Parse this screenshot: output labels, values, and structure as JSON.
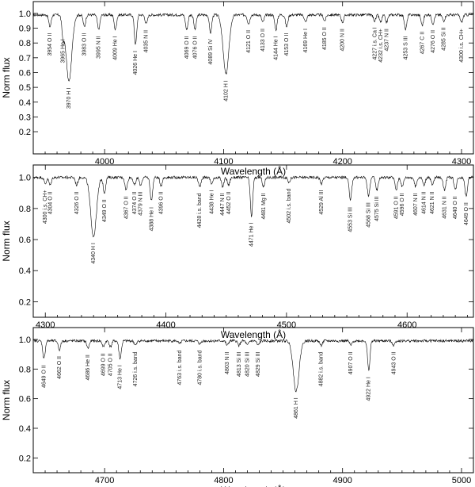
{
  "chart_data": [
    {
      "type": "line",
      "xlabel": "Wavelength (Å)",
      "ylabel": "Norm flux",
      "xlim": [
        3940,
        4310
      ],
      "ylim": [
        0.05,
        1.08
      ],
      "xticks": [
        4000,
        4100,
        4200,
        4300
      ],
      "yticks": [
        0.2,
        0.3,
        0.4,
        0.5,
        0.6,
        0.7,
        0.8,
        0.9,
        1.0
      ],
      "continuum": 0.99,
      "absorption_lines": [
        {
          "wl": 3954,
          "label": "3954 O II",
          "depth": 0.08
        },
        {
          "wl": 3965,
          "label": "3965 He I",
          "depth": 0.12
        },
        {
          "wl": 3970,
          "label": "3970 H I",
          "depth": 0.45
        },
        {
          "wl": 3983,
          "label": "3983 O II",
          "depth": 0.08
        },
        {
          "wl": 3995,
          "label": "3995 N II",
          "depth": 0.1
        },
        {
          "wl": 4009,
          "label": "4009 He I",
          "depth": 0.1
        },
        {
          "wl": 4026,
          "label": "4026 He I",
          "depth": 0.2
        },
        {
          "wl": 4035,
          "label": "4035 N II",
          "depth": 0.06
        },
        {
          "wl": 4069,
          "label": "4069 O II",
          "depth": 0.1
        },
        {
          "wl": 4076,
          "label": "4076 O II",
          "depth": 0.1
        },
        {
          "wl": 4089,
          "label": "4089 Si IV",
          "depth": 0.12
        },
        {
          "wl": 4102,
          "label": "4102 H I",
          "depth": 0.4
        },
        {
          "wl": 4121,
          "label": "4121 O II",
          "depth": 0.06
        },
        {
          "wl": 4133,
          "label": "4133 O II",
          "depth": 0.05
        },
        {
          "wl": 4144,
          "label": "4144 He I",
          "depth": 0.1
        },
        {
          "wl": 4153,
          "label": "4153 O II",
          "depth": 0.08
        },
        {
          "wl": 4169,
          "label": "4169 He I",
          "depth": 0.05
        },
        {
          "wl": 4185,
          "label": "4185 O II",
          "depth": 0.04
        },
        {
          "wl": 4200,
          "label": "4200 N II",
          "depth": 0.05
        },
        {
          "wl": 4227,
          "label": "4227 i.s. Ca I",
          "depth": 0.04
        },
        {
          "wl": 4232,
          "label": "4232 i.s. CH+",
          "depth": 0.05
        },
        {
          "wl": 4237,
          "label": "4237 N II",
          "depth": 0.05
        },
        {
          "wl": 4253,
          "label": "4253 S III",
          "depth": 0.1
        },
        {
          "wl": 4267,
          "label": "4267 C II",
          "depth": 0.07
        },
        {
          "wl": 4276,
          "label": "4276 O II",
          "depth": 0.06
        },
        {
          "wl": 4285,
          "label": "4285 Si II",
          "depth": 0.04
        },
        {
          "wl": 4300,
          "label": "4300 i.s. CH+",
          "depth": 0.05
        }
      ]
    },
    {
      "type": "line",
      "xlabel": "Wavelength (Å)",
      "ylabel": "Norm flux",
      "xlim": [
        4290,
        4655
      ],
      "ylim": [
        0.1,
        1.08
      ],
      "xticks": [
        4300,
        4400,
        4500,
        4600
      ],
      "yticks": [
        0.2,
        0.4,
        0.6,
        0.8,
        1.0
      ],
      "continuum": 1.0,
      "absorption_lines": [
        {
          "wl": 4300,
          "label": "4300 i.s. CH+",
          "depth": 0.04
        },
        {
          "wl": 4304,
          "label": "4304 O II",
          "depth": 0.05
        },
        {
          "wl": 4326,
          "label": "4326 O II",
          "depth": 0.05
        },
        {
          "wl": 4340,
          "label": "4340 H I",
          "depth": 0.38
        },
        {
          "wl": 4349,
          "label": "4349 O II",
          "depth": 0.1
        },
        {
          "wl": 4367,
          "label": "4367 O II",
          "depth": 0.08
        },
        {
          "wl": 4374,
          "label": "4374 O II",
          "depth": 0.05
        },
        {
          "wl": 4379,
          "label": "4379 N III",
          "depth": 0.05
        },
        {
          "wl": 4388,
          "label": "4388 He I",
          "depth": 0.15
        },
        {
          "wl": 4396,
          "label": "4396 O II",
          "depth": 0.05
        },
        {
          "wl": 4428,
          "label": "4428 i.s. band",
          "depth": 0.06
        },
        {
          "wl": 4438,
          "label": "4438 He I",
          "depth": 0.04
        },
        {
          "wl": 4447,
          "label": "4447 N II",
          "depth": 0.06
        },
        {
          "wl": 4452,
          "label": "4452 O II",
          "depth": 0.05
        },
        {
          "wl": 4471,
          "label": "4471 He I",
          "depth": 0.25
        },
        {
          "wl": 4481,
          "label": "4481 Mg II",
          "depth": 0.06
        },
        {
          "wl": 4502,
          "label": "4502 i.s. band",
          "depth": 0.03
        },
        {
          "wl": 4529,
          "label": "4529 Al III",
          "depth": 0.04
        },
        {
          "wl": 4553,
          "label": "4553 Si III",
          "depth": 0.15
        },
        {
          "wl": 4568,
          "label": "4568 Si III",
          "depth": 0.12
        },
        {
          "wl": 4575,
          "label": "4575 Si III",
          "depth": 0.08
        },
        {
          "wl": 4591,
          "label": "4591 O II",
          "depth": 0.08
        },
        {
          "wl": 4596,
          "label": "4596 O II",
          "depth": 0.06
        },
        {
          "wl": 4607,
          "label": "4607 N II",
          "depth": 0.06
        },
        {
          "wl": 4614,
          "label": "4614 N II",
          "depth": 0.05
        },
        {
          "wl": 4621,
          "label": "4621 N II",
          "depth": 0.05
        },
        {
          "wl": 4631,
          "label": "4631 N II",
          "depth": 0.08
        },
        {
          "wl": 4640,
          "label": "4640 O II",
          "depth": 0.08
        },
        {
          "wl": 4649,
          "label": "4649 O II",
          "depth": 0.12
        }
      ]
    },
    {
      "type": "line",
      "xlabel": "Wavelength (Å)",
      "ylabel": "Norm flux",
      "xlim": [
        4640,
        5010
      ],
      "ylim": [
        0.1,
        1.08
      ],
      "xticks": [
        4700,
        4800,
        4900,
        5000
      ],
      "yticks": [
        0.2,
        0.4,
        0.6,
        0.8,
        1.0
      ],
      "continuum": 0.99,
      "absorption_lines": [
        {
          "wl": 4649,
          "label": "4649 O II",
          "depth": 0.12
        },
        {
          "wl": 4662,
          "label": "4662 O II",
          "depth": 0.06
        },
        {
          "wl": 4686,
          "label": "4686 He II",
          "depth": 0.05
        },
        {
          "wl": 4699,
          "label": "4699 O II",
          "depth": 0.04
        },
        {
          "wl": 4705,
          "label": "4705 O II",
          "depth": 0.04
        },
        {
          "wl": 4713,
          "label": "4713 He I",
          "depth": 0.12
        },
        {
          "wl": 4726,
          "label": "4726 i.s. band",
          "depth": 0.03
        },
        {
          "wl": 4763,
          "label": "4763 i.s. band",
          "depth": 0.02
        },
        {
          "wl": 4780,
          "label": "4780 i.s. band",
          "depth": 0.02
        },
        {
          "wl": 4803,
          "label": "4803 N II",
          "depth": 0.03
        },
        {
          "wl": 4813,
          "label": "4813 Si III",
          "depth": 0.03
        },
        {
          "wl": 4820,
          "label": "4820 Si III",
          "depth": 0.03
        },
        {
          "wl": 4829,
          "label": "4829 Si III",
          "depth": 0.03
        },
        {
          "wl": 4861,
          "label": "4861 H I",
          "depth": 0.34
        },
        {
          "wl": 4882,
          "label": "4882 i.s. band",
          "depth": 0.03
        },
        {
          "wl": 4907,
          "label": "4907 O II",
          "depth": 0.03
        },
        {
          "wl": 4922,
          "label": "4922 He I",
          "depth": 0.2
        },
        {
          "wl": 4943,
          "label": "4943 O II",
          "depth": 0.03
        }
      ]
    }
  ]
}
